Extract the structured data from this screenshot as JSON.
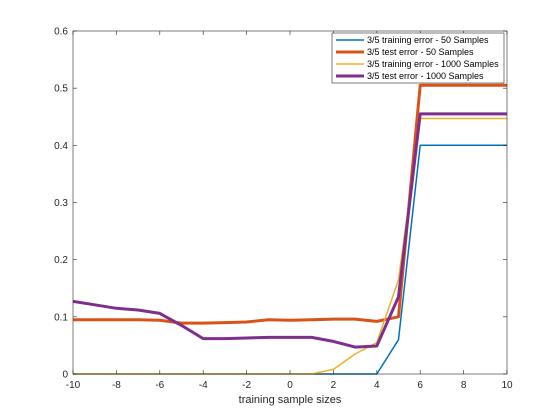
{
  "chart_data": {
    "type": "line",
    "xlabel": "training sample sizes",
    "ylabel": "",
    "title": "",
    "xlim": [
      -10,
      10
    ],
    "ylim": [
      0,
      0.6
    ],
    "xticks": [
      "-10",
      "-8",
      "-6",
      "-4",
      "-2",
      "0",
      "2",
      "4",
      "6",
      "8",
      "10"
    ],
    "yticks": [
      "0",
      "0.1",
      "0.2",
      "0.3",
      "0.4",
      "0.5",
      "0.6"
    ],
    "grid": false,
    "legend_position": "top-right",
    "series": [
      {
        "name": "3/5 training error - 50 Samples",
        "color": "#0072BD",
        "width": 1.5,
        "x": [
          -10,
          -9,
          -8,
          -7,
          -6,
          -5,
          -4,
          -3,
          -2,
          -1,
          0,
          1,
          2,
          3,
          4,
          5,
          6,
          7,
          8,
          9,
          10
        ],
        "y": [
          0,
          0,
          0,
          0,
          0,
          0,
          0,
          0,
          0,
          0,
          0,
          0,
          0,
          0,
          0,
          0.06,
          0.4,
          0.4,
          0.4,
          0.4,
          0.4
        ]
      },
      {
        "name": "3/5 test error - 50 Samples",
        "color": "#D95319",
        "width": 3,
        "x": [
          -10,
          -9,
          -8,
          -7,
          -6,
          -5,
          -4,
          -3,
          -2,
          -1,
          0,
          1,
          2,
          3,
          4,
          5,
          6,
          7,
          8,
          9,
          10
        ],
        "y": [
          0.095,
          0.095,
          0.095,
          0.095,
          0.094,
          0.089,
          0.089,
          0.09,
          0.091,
          0.095,
          0.094,
          0.095,
          0.096,
          0.096,
          0.092,
          0.1,
          0.505,
          0.505,
          0.505,
          0.505,
          0.505
        ]
      },
      {
        "name": "3/5 training error - 1000 Samples",
        "color": "#EDB120",
        "width": 1.5,
        "x": [
          -10,
          -9,
          -8,
          -7,
          -6,
          -5,
          -4,
          -3,
          -2,
          -1,
          0,
          1,
          2,
          3,
          4,
          5,
          6,
          7,
          8,
          9,
          10
        ],
        "y": [
          0,
          0,
          0,
          0,
          0,
          0,
          0,
          0,
          0,
          0,
          0,
          0,
          0.008,
          0.035,
          0.055,
          0.165,
          0.447,
          0.447,
          0.447,
          0.447,
          0.447
        ]
      },
      {
        "name": "3/5 test error - 1000 Samples",
        "color": "#7E2F8E",
        "width": 3,
        "x": [
          -10,
          -9,
          -8,
          -7,
          -6,
          -5,
          -4,
          -3,
          -2,
          -1,
          0,
          1,
          2,
          3,
          4,
          5,
          6,
          7,
          8,
          9,
          10
        ],
        "y": [
          0.127,
          0.121,
          0.115,
          0.112,
          0.106,
          0.085,
          0.062,
          0.062,
          0.063,
          0.064,
          0.064,
          0.064,
          0.057,
          0.047,
          0.049,
          0.135,
          0.455,
          0.455,
          0.455,
          0.455,
          0.455
        ]
      }
    ]
  }
}
